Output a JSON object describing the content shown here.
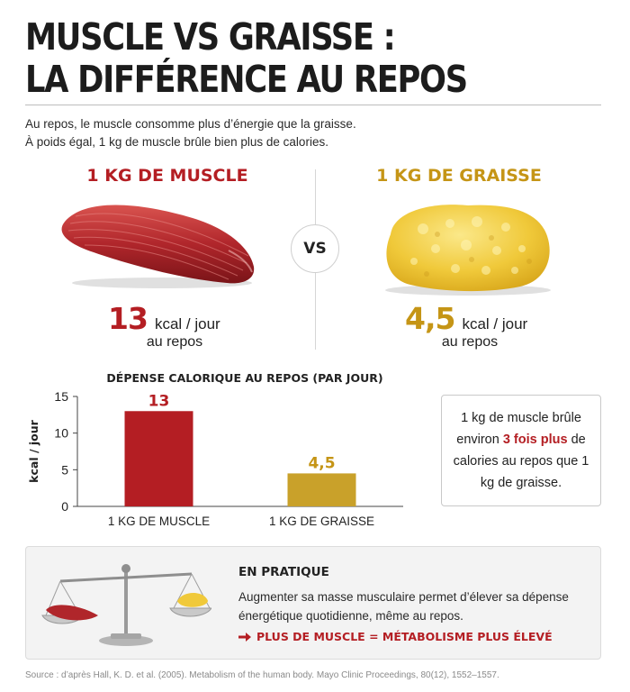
{
  "title_line1": "MUSCLE VS GRAISSE :",
  "title_line2": "LA DIFFÉRENCE AU REPOS",
  "intro_line1": "Au repos, le muscle consomme plus d’énergie que la graisse.",
  "intro_line2": "À poids égal, 1 kg de muscle brûle bien plus de calories.",
  "comparison": {
    "muscle": {
      "heading": "1 KG DE MUSCLE",
      "value": "13",
      "unit": "kcal / jour",
      "sub": "au repos"
    },
    "vs": "VS",
    "fat": {
      "heading": "1 KG DE GRAISSE",
      "value": "4,5",
      "unit": "kcal / jour",
      "sub": "au repos"
    }
  },
  "stat_box": {
    "pre": "1 kg de muscle brûle environ ",
    "highlight": "3 fois plus",
    "post": " de calories au repos que 1 kg de graisse."
  },
  "practice": {
    "heading": "EN PRATIQUE",
    "text": "Augmenter sa masse musculaire permet d’élever sa dépense énergétique quotidienne, même au repos.",
    "cta": "PLUS DE MUSCLE = MÉTABOLISME PLUS ÉLEVÉ"
  },
  "source": "Source : d’après Hall, K. D. et al. (2005). Metabolism of the human body. Mayo Clinic Proceedings, 80(12), 1552–1557.",
  "colors": {
    "muscle": "#b41e23",
    "fat": "#c9a12a",
    "accent": "#b41e23"
  },
  "chart_data": {
    "type": "bar",
    "title": "DÉPENSE CALORIQUE AU REPOS (PAR JOUR)",
    "ylabel": "kcal / jour",
    "xlabel": "",
    "categories": [
      "1 KG DE MUSCLE",
      "1 KG DE GRAISSE"
    ],
    "values": [
      13,
      4.5
    ],
    "value_labels": [
      "13",
      "4,5"
    ],
    "ylim": [
      0,
      15
    ],
    "yticks": [
      0,
      5,
      10,
      15
    ],
    "grid": false,
    "legend": "none"
  }
}
